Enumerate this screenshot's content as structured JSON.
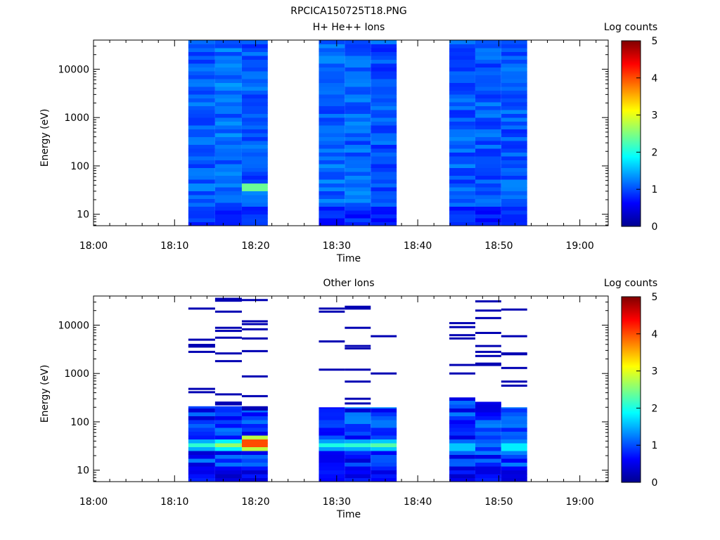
{
  "figure": {
    "title": "RPCICA150725T18.PNG"
  },
  "chart_data": [
    {
      "type": "heatmap",
      "title": "H+ He++ Ions",
      "xlabel": "Time",
      "ylabel": "Energy (eV)",
      "x_tick_labels": [
        "18:00",
        "18:10",
        "18:20",
        "18:30",
        "18:40",
        "18:50",
        "19:00"
      ],
      "x_tick_minutes": [
        0,
        10,
        20,
        30,
        40,
        50,
        60
      ],
      "x_range_minutes": [
        0,
        63.5
      ],
      "y_scale": "log",
      "y_range": [
        5.8,
        40000
      ],
      "y_tick_labels": [
        "10",
        "100",
        "1000",
        "10000"
      ],
      "y_tick_values": [
        10,
        100,
        1000,
        10000
      ],
      "colorbar": {
        "label": "Log counts",
        "range": [
          0,
          5
        ],
        "tick_labels": [
          "0",
          "1",
          "2",
          "3",
          "4",
          "5"
        ],
        "colormap": "jet"
      },
      "time_columns_minutes": [
        [
          11.7,
          15.0
        ],
        [
          15.0,
          18.3
        ],
        [
          18.3,
          21.5
        ],
        [
          27.8,
          31.0
        ],
        [
          31.0,
          34.2
        ],
        [
          34.2,
          37.4
        ],
        [
          43.9,
          47.1
        ],
        [
          47.1,
          50.3
        ],
        [
          50.3,
          53.5
        ]
      ],
      "column_profiles": [
        {
          "base": 1.05,
          "variation": 0.25,
          "low_energy_peak": {
            "energy": 35,
            "value": 1.1
          }
        },
        {
          "base": 1.15,
          "variation": 0.25,
          "low_energy_peak": {
            "energy": 20,
            "value": 1.0
          }
        },
        {
          "base": 1.05,
          "variation": 0.25,
          "low_energy_peak": {
            "energy": 38,
            "value": 2.2
          }
        },
        {
          "base": 1.1,
          "variation": 0.25,
          "low_energy_peak": {
            "energy": 12,
            "value": 0.6
          }
        },
        {
          "base": 1.1,
          "variation": 0.25,
          "low_energy_peak": {
            "energy": 20,
            "value": 0.8
          }
        },
        {
          "base": 1.0,
          "variation": 0.25,
          "low_energy_peak": {
            "energy": 9,
            "value": 0.3
          }
        },
        {
          "base": 1.05,
          "variation": 0.25,
          "low_energy_peak": {
            "energy": 20,
            "value": 0.7
          }
        },
        {
          "base": 1.05,
          "variation": 0.25,
          "low_energy_peak": {
            "energy": 20,
            "value": 0.7
          }
        },
        {
          "base": 1.05,
          "variation": 0.25,
          "low_energy_peak": {
            "energy": 20,
            "value": 0.8
          }
        }
      ]
    },
    {
      "type": "heatmap",
      "title": "Other Ions",
      "xlabel": "Time",
      "ylabel": "Energy (eV)",
      "x_tick_labels": [
        "18:00",
        "18:10",
        "18:20",
        "18:30",
        "18:40",
        "18:50",
        "19:00"
      ],
      "x_tick_minutes": [
        0,
        10,
        20,
        30,
        40,
        50,
        60
      ],
      "x_range_minutes": [
        0,
        63.5
      ],
      "y_scale": "log",
      "y_range": [
        5.8,
        40000
      ],
      "y_tick_labels": [
        "10",
        "100",
        "1000",
        "10000"
      ],
      "y_tick_values": [
        10,
        100,
        1000,
        10000
      ],
      "colorbar": {
        "label": "Log counts",
        "range": [
          0,
          5
        ],
        "tick_labels": [
          "0",
          "1",
          "2",
          "3",
          "4",
          "5"
        ],
        "colormap": "jet"
      },
      "time_columns_minutes": [
        [
          11.7,
          15.0
        ],
        [
          15.0,
          18.3
        ],
        [
          18.3,
          21.5
        ],
        [
          27.8,
          31.0
        ],
        [
          31.0,
          34.2
        ],
        [
          34.2,
          37.4
        ],
        [
          43.9,
          47.1
        ],
        [
          47.1,
          50.3
        ],
        [
          50.3,
          53.5
        ]
      ],
      "low_energy_blocks": [
        {
          "col": 0,
          "top_energy": 210,
          "peak": {
            "energy": 33,
            "value": 2.1
          }
        },
        {
          "col": 1,
          "top_energy": 210,
          "peak": {
            "energy": 33,
            "value": 2.6
          }
        },
        {
          "col": 2,
          "top_energy": 200,
          "peak": {
            "energy": 37,
            "value": 4.0
          }
        },
        {
          "col": 3,
          "top_energy": 200,
          "peak": {
            "energy": 33,
            "value": 2.0
          }
        },
        {
          "col": 4,
          "top_energy": 200,
          "peak": {
            "energy": 33,
            "value": 2.1
          }
        },
        {
          "col": 5,
          "top_energy": 200,
          "peak": {
            "energy": 33,
            "value": 2.3
          }
        },
        {
          "col": 6,
          "top_energy": 320,
          "peak": {
            "energy": 30,
            "value": 1.6
          }
        },
        {
          "col": 7,
          "top_energy": 260,
          "peak": {
            "energy": 33,
            "value": 1.2
          }
        },
        {
          "col": 8,
          "top_energy": 200,
          "peak": {
            "energy": 30,
            "value": 1.8
          }
        }
      ],
      "sparse_lines": [
        {
          "col": 0,
          "energies": [
            22000,
            5000,
            3900,
            3600,
            2800,
            480,
            410
          ]
        },
        {
          "col": 1,
          "energies": [
            35000,
            32000,
            19000,
            8800,
            7600,
            5500,
            2600,
            1800,
            370,
            250,
            230
          ]
        },
        {
          "col": 2,
          "energies": [
            33000,
            12000,
            10500,
            8200,
            5300,
            2900,
            870,
            340,
            200,
            180
          ]
        },
        {
          "col": 3,
          "energies": [
            22000,
            19000,
            4600,
            1200
          ]
        },
        {
          "col": 4,
          "energies": [
            24000,
            22000,
            8800,
            3700,
            3300,
            1200,
            680,
            300,
            240
          ]
        },
        {
          "col": 5,
          "energies": [
            5900,
            1000
          ]
        },
        {
          "col": 6,
          "energies": [
            11000,
            9100,
            6200,
            5300,
            1500,
            1000
          ]
        },
        {
          "col": 7,
          "energies": [
            31000,
            20000,
            14000,
            6900,
            3700,
            2800,
            2300,
            1600,
            1500
          ]
        },
        {
          "col": 8,
          "energies": [
            21000,
            5900,
            2600,
            2500,
            1300,
            680,
            560
          ]
        }
      ]
    }
  ]
}
